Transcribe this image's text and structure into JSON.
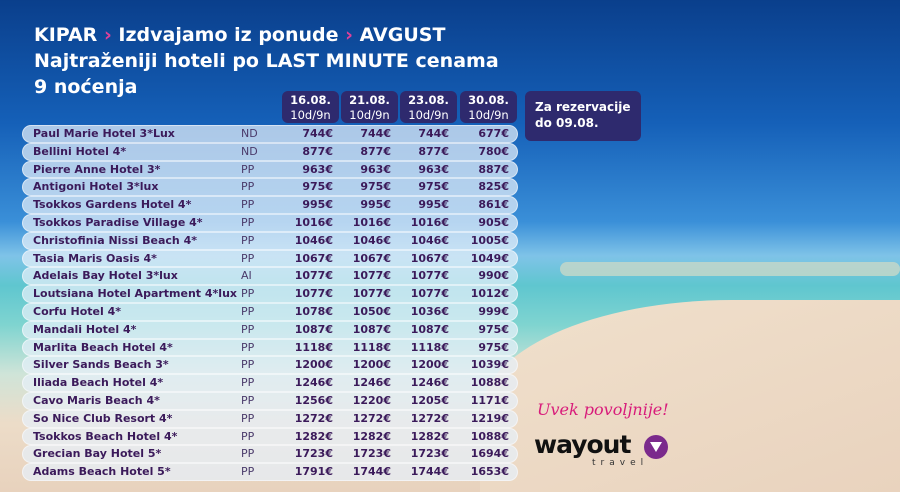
{
  "title": {
    "part1": "KIPAR",
    "sep": "›",
    "part2": "Izdvajamo iz ponude",
    "part3": "AVGUST",
    "line2": "Najtraženiji hoteli po LAST MINUTE cenama",
    "line3": "9 noćenja"
  },
  "columns": [
    {
      "date": "16.08.",
      "dur": "10d/9n"
    },
    {
      "date": "21.08.",
      "dur": "10d/9n"
    },
    {
      "date": "23.08.",
      "dur": "10d/9n"
    },
    {
      "date": "30.08.",
      "dur": "10d/9n"
    }
  ],
  "reservation": {
    "line1": "Za rezervacije",
    "line2": "do 09.08."
  },
  "rows": [
    {
      "name": "Paul Marie Hotel 3*Lux",
      "board": "ND",
      "prices": [
        "744€",
        "744€",
        "744€",
        "677€"
      ]
    },
    {
      "name": "Bellini Hotel 4*",
      "board": "ND",
      "prices": [
        "877€",
        "877€",
        "877€",
        "780€"
      ]
    },
    {
      "name": "Pierre Anne Hotel 3*",
      "board": "PP",
      "prices": [
        "963€",
        "963€",
        "963€",
        "887€"
      ]
    },
    {
      "name": "Antigoni Hotel 3*lux",
      "board": "PP",
      "prices": [
        "975€",
        "975€",
        "975€",
        "825€"
      ]
    },
    {
      "name": "Tsokkos Gardens Hotel 4*",
      "board": "PP",
      "prices": [
        "995€",
        "995€",
        "995€",
        "861€"
      ]
    },
    {
      "name": "Tsokkos Paradise Village 4*",
      "board": "PP",
      "prices": [
        "1016€",
        "1016€",
        "1016€",
        "905€"
      ]
    },
    {
      "name": "Christofinia Nissi Beach 4*",
      "board": "PP",
      "prices": [
        "1046€",
        "1046€",
        "1046€",
        "1005€"
      ]
    },
    {
      "name": "Tasia Maris Oasis 4*",
      "board": "PP",
      "prices": [
        "1067€",
        "1067€",
        "1067€",
        "1049€"
      ]
    },
    {
      "name": "Adelais Bay Hotel 3*lux",
      "board": "AI",
      "prices": [
        "1077€",
        "1077€",
        "1077€",
        "990€"
      ]
    },
    {
      "name": "Loutsiana Hotel Apartment 4*lux",
      "board": "PP",
      "prices": [
        "1077€",
        "1077€",
        "1077€",
        "1012€"
      ]
    },
    {
      "name": "Corfu Hotel 4*",
      "board": "PP",
      "prices": [
        "1078€",
        "1050€",
        "1036€",
        "999€"
      ]
    },
    {
      "name": "Mandali Hotel 4*",
      "board": "PP",
      "prices": [
        "1087€",
        "1087€",
        "1087€",
        "975€"
      ]
    },
    {
      "name": "Marlita Beach Hotel 4*",
      "board": "PP",
      "prices": [
        "1118€",
        "1118€",
        "1118€",
        "975€"
      ]
    },
    {
      "name": "Silver Sands Beach 3*",
      "board": "PP",
      "prices": [
        "1200€",
        "1200€",
        "1200€",
        "1039€"
      ]
    },
    {
      "name": "Iliada Beach Hotel 4*",
      "board": "PP",
      "prices": [
        "1246€",
        "1246€",
        "1246€",
        "1088€"
      ]
    },
    {
      "name": "Cavo Maris Beach 4*",
      "board": "PP",
      "prices": [
        "1256€",
        "1220€",
        "1205€",
        "1171€"
      ]
    },
    {
      "name": "So Nice Club Resort 4*",
      "board": "PP",
      "prices": [
        "1272€",
        "1272€",
        "1272€",
        "1219€"
      ]
    },
    {
      "name": "Tsokkos Beach Hotel 4*",
      "board": "PP",
      "prices": [
        "1282€",
        "1282€",
        "1282€",
        "1088€"
      ]
    },
    {
      "name": "Grecian Bay Hotel 5*",
      "board": "PP",
      "prices": [
        "1723€",
        "1723€",
        "1723€",
        "1694€"
      ]
    },
    {
      "name": "Adams Beach Hotel 5*",
      "board": "PP",
      "prices": [
        "1791€",
        "1744€",
        "1744€",
        "1653€"
      ]
    }
  ],
  "slogan": "Uvek povoljnije!",
  "logo": {
    "name": "wayout",
    "sub": "travel",
    "icon": "location-arrow-icon",
    "color": "#7b2a8c"
  },
  "colors": {
    "accent": "#2e2a6e",
    "pink": "#d81b7a",
    "text": "#3b1a5a"
  }
}
